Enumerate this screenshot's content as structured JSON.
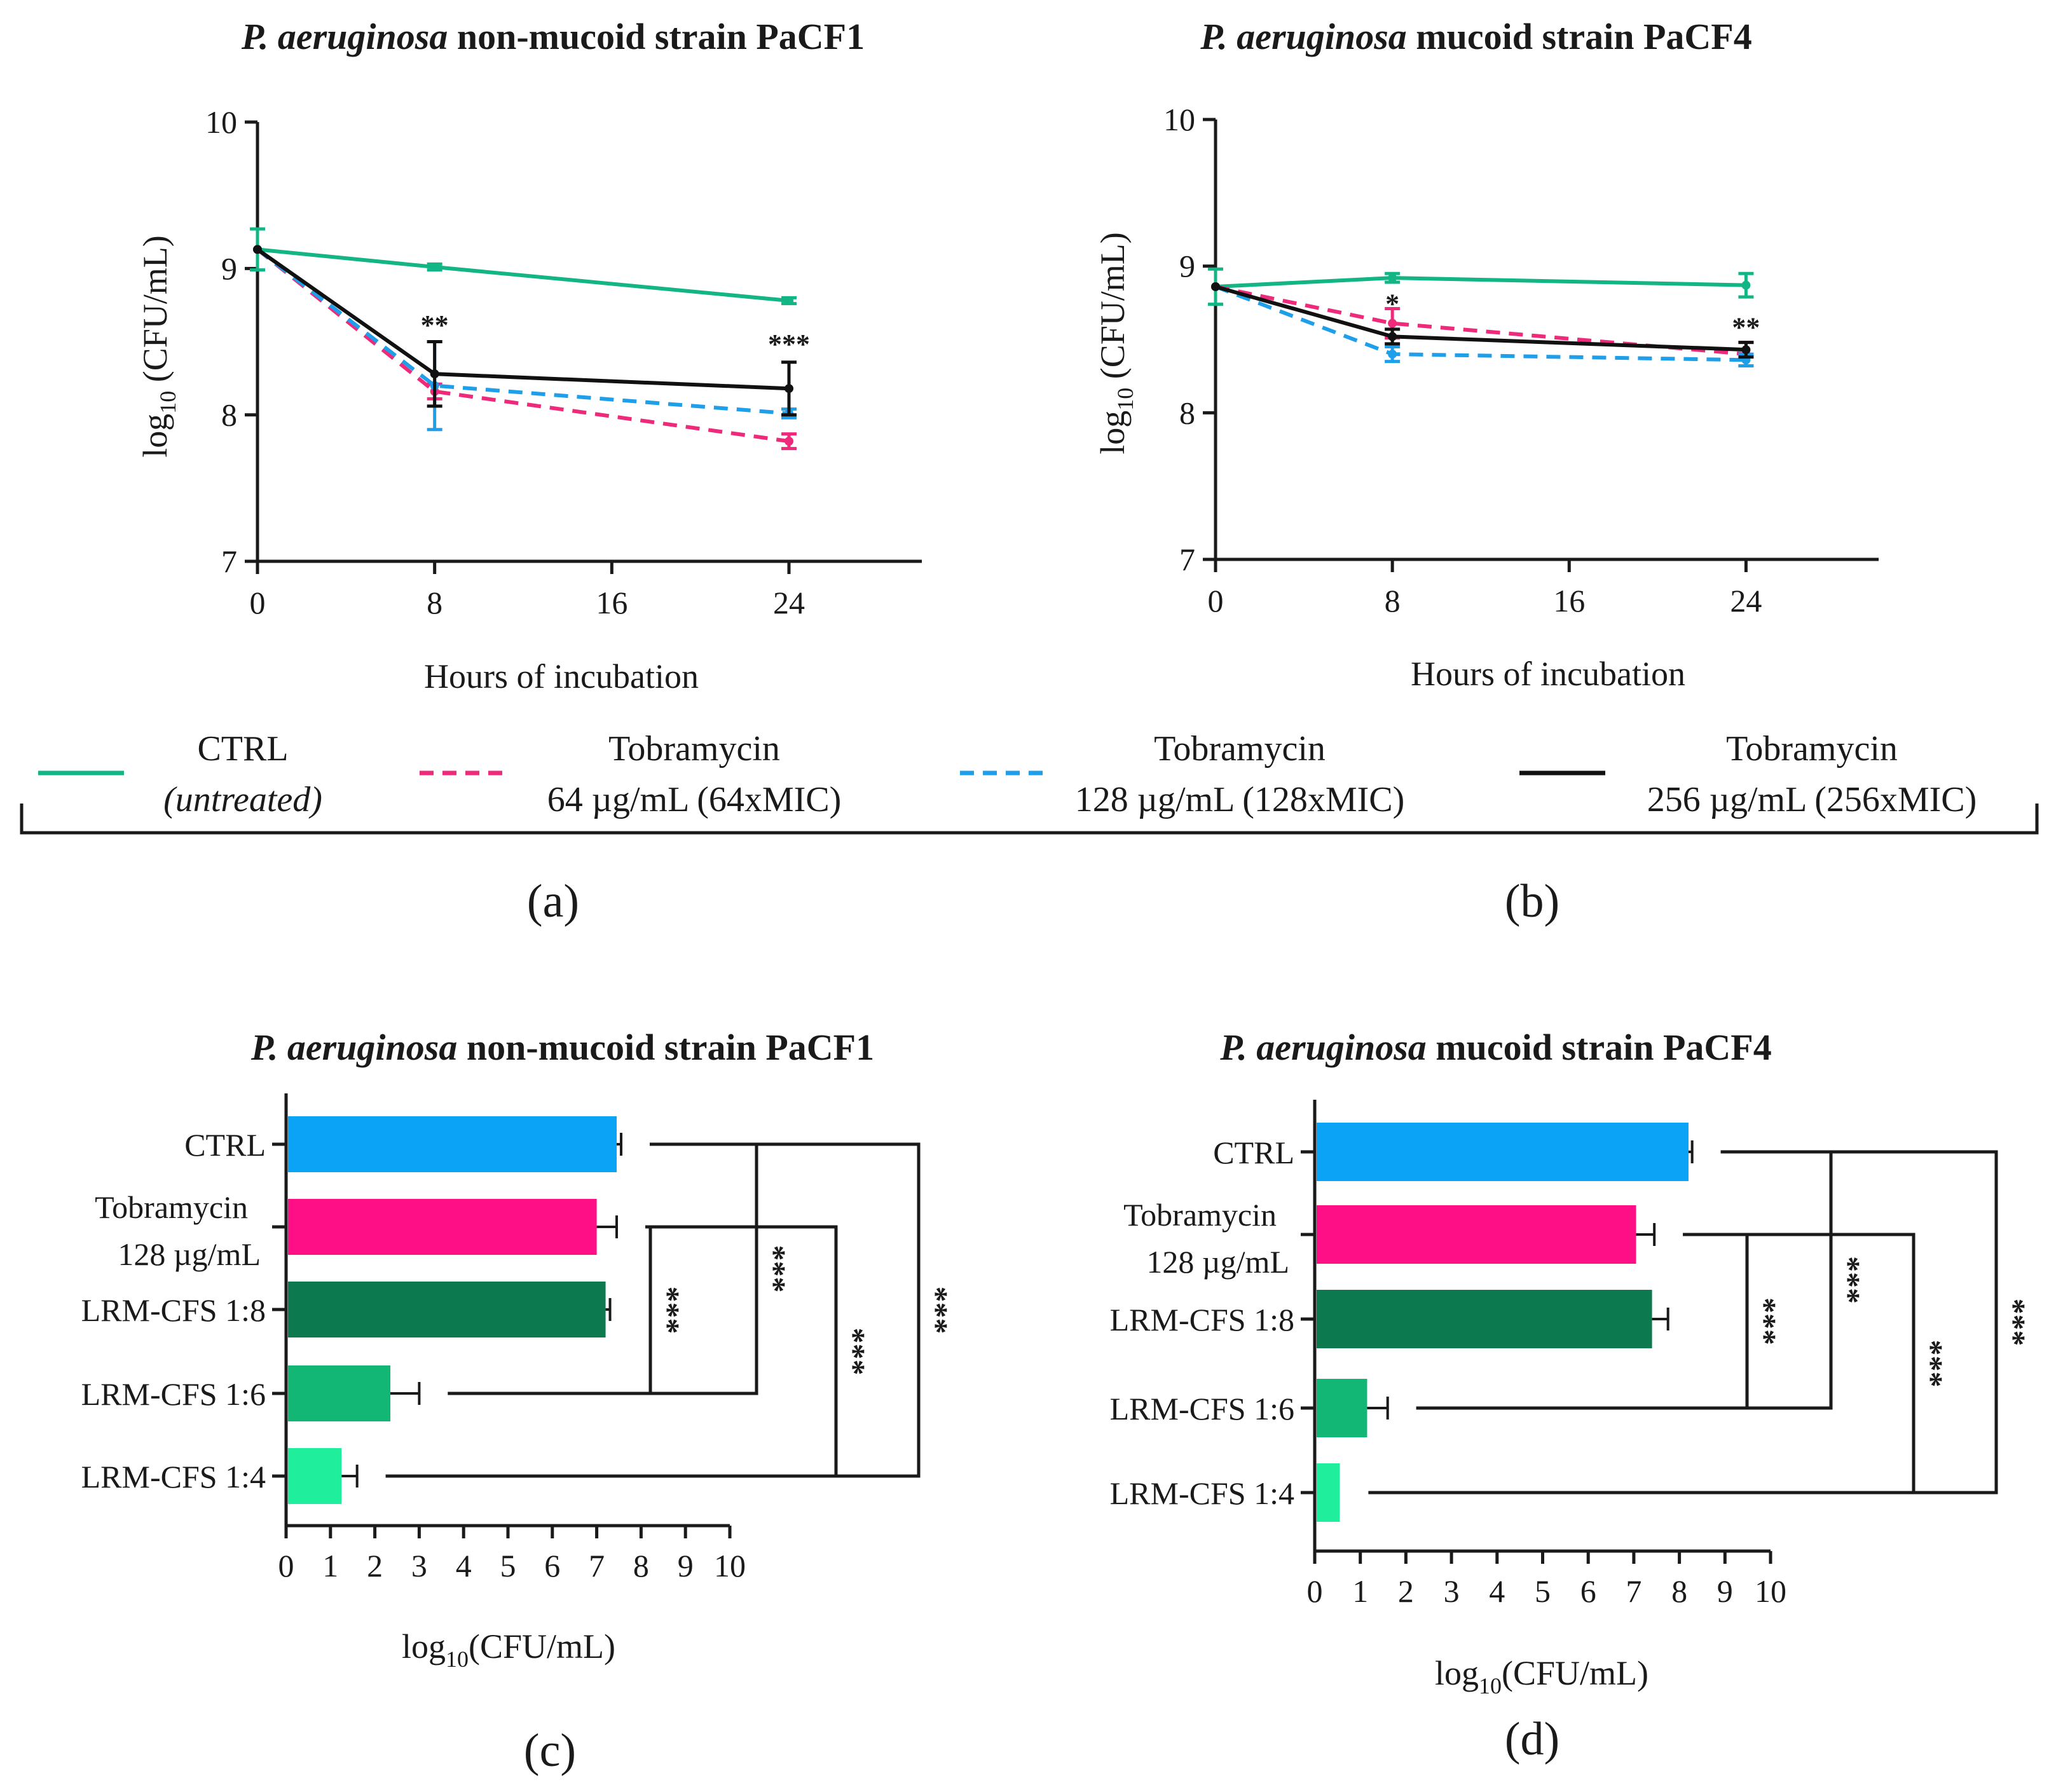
{
  "colors": {
    "ctrl_line": "#13b585",
    "tob64_line": "#ee2a7b",
    "tob128_line": "#1f9fea",
    "tob256_line": "#111111",
    "bar_ctrl": "#0aa3f5",
    "bar_tob": "#ff0f86",
    "bar_18": "#0c7a4e",
    "bar_16": "#12b775",
    "bar_14": "#1fef9c"
  },
  "legend": {
    "items": [
      {
        "line1": "CTRL",
        "line2": "(untreated)",
        "line2_italic": true,
        "color_key": "ctrl_line",
        "dashed": false
      },
      {
        "line1": "Tobramycin",
        "line2": "64 µg/mL (64xMIC)",
        "line2_italic": false,
        "color_key": "tob64_line",
        "dashed": true
      },
      {
        "line1": "Tobramycin",
        "line2": "128 µg/mL (128xMIC)",
        "line2_italic": false,
        "color_key": "tob128_line",
        "dashed": true
      },
      {
        "line1": "Tobramycin",
        "line2": "256 µg/mL (256xMIC)",
        "line2_italic": false,
        "color_key": "tob256_line",
        "dashed": false
      }
    ]
  },
  "chart_data": [
    {
      "id": "a",
      "type": "line",
      "panel_label": "(a)",
      "title_italic": "P. aeruginosa",
      "title_rest": " non-mucoid strain PaCF1",
      "xlabel": "Hours of incubation",
      "ylabel_main": "log",
      "ylabel_sub": "10",
      "ylabel_rest": " (CFU/mL)",
      "x_ticks": [
        0,
        8,
        16,
        24
      ],
      "y_ticks": [
        7,
        8,
        9,
        10
      ],
      "xlim": [
        0,
        30
      ],
      "ylim": [
        7,
        10
      ],
      "series": [
        {
          "name": "CTRL",
          "color_key": "ctrl_line",
          "dashed": false,
          "x": [
            0,
            8,
            24
          ],
          "y": [
            9.13,
            9.01,
            8.78
          ],
          "err": [
            0.14,
            0.02,
            0.02
          ]
        },
        {
          "name": "Tobramycin 64 µg/mL",
          "color_key": "tob64_line",
          "dashed": true,
          "x": [
            0,
            8,
            24
          ],
          "y": [
            9.13,
            8.16,
            7.82
          ],
          "err": [
            0.0,
            0.05,
            0.05
          ]
        },
        {
          "name": "Tobramycin 128 µg/mL",
          "color_key": "tob128_line",
          "dashed": true,
          "x": [
            0,
            8,
            24
          ],
          "y": [
            9.13,
            8.2,
            8.01
          ],
          "err": [
            0.0,
            0.3,
            0.03
          ]
        },
        {
          "name": "Tobramycin 256 µg/mL",
          "color_key": "tob256_line",
          "dashed": false,
          "x": [
            0,
            8,
            24
          ],
          "y": [
            9.13,
            8.28,
            8.18
          ],
          "err": [
            0.0,
            0.22,
            0.18
          ]
        }
      ],
      "annotations": [
        {
          "x": 8,
          "y": 8.55,
          "text": "**"
        },
        {
          "x": 24,
          "y": 8.42,
          "text": "***"
        }
      ]
    },
    {
      "id": "b",
      "type": "line",
      "panel_label": "(b)",
      "title_italic": "P. aeruginosa",
      "title_rest": " mucoid strain PaCF4",
      "xlabel": "Hours of incubation",
      "ylabel_main": "log",
      "ylabel_sub": "10",
      "ylabel_rest": " (CFU/mL)",
      "x_ticks": [
        0,
        8,
        16,
        24
      ],
      "y_ticks": [
        7,
        8,
        9,
        10
      ],
      "xlim": [
        0,
        30
      ],
      "ylim": [
        7,
        10
      ],
      "series": [
        {
          "name": "CTRL",
          "color_key": "ctrl_line",
          "dashed": false,
          "x": [
            0,
            8,
            24
          ],
          "y": [
            8.86,
            8.92,
            8.87
          ],
          "err": [
            0.12,
            0.03,
            0.08
          ]
        },
        {
          "name": "Tobramycin 64 µg/mL",
          "color_key": "tob64_line",
          "dashed": true,
          "x": [
            0,
            8,
            24
          ],
          "y": [
            8.86,
            8.61,
            8.4
          ],
          "err": [
            0.0,
            0.1,
            0.08
          ]
        },
        {
          "name": "Tobramycin 128 µg/mL",
          "color_key": "tob128_line",
          "dashed": true,
          "x": [
            0,
            8,
            24
          ],
          "y": [
            8.86,
            8.4,
            8.36
          ],
          "err": [
            0.0,
            0.05,
            0.04
          ]
        },
        {
          "name": "Tobramycin 256 µg/mL",
          "color_key": "tob256_line",
          "dashed": false,
          "x": [
            0,
            8,
            24
          ],
          "y": [
            8.86,
            8.52,
            8.43
          ],
          "err": [
            0.0,
            0.05,
            0.05
          ]
        }
      ],
      "annotations": [
        {
          "x": 8,
          "y": 8.68,
          "text": "*"
        },
        {
          "x": 24,
          "y": 8.52,
          "text": "**"
        }
      ]
    },
    {
      "id": "c",
      "type": "bar",
      "orientation": "horizontal",
      "panel_label": "(c)",
      "title_italic": "P. aeruginosa",
      "title_rest": " non-mucoid strain PaCF1",
      "xlabel_main": "log",
      "xlabel_sub": "10",
      "xlabel_rest": "(CFU/mL)",
      "x_ticks": [
        0,
        1,
        2,
        3,
        4,
        5,
        6,
        7,
        8,
        9,
        10
      ],
      "xlim": [
        0,
        10
      ],
      "categories": [
        {
          "line1": "CTRL",
          "line2": ""
        },
        {
          "line1": "Tobramycin",
          "line2": "128 µg/mL"
        },
        {
          "line1": "LRM-CFS 1:8",
          "line2": ""
        },
        {
          "line1": "LRM-CFS 1:6",
          "line2": ""
        },
        {
          "line1": "LRM-CFS 1:4",
          "line2": ""
        }
      ],
      "values": [
        7.45,
        7.0,
        7.2,
        2.35,
        1.25
      ],
      "errors": [
        0.1,
        0.45,
        0.1,
        0.65,
        0.35
      ],
      "bar_color_keys": [
        "bar_ctrl",
        "bar_tob",
        "bar_18",
        "bar_16",
        "bar_14"
      ],
      "brackets": [
        {
          "from": 1,
          "to": 3,
          "text": "***"
        },
        {
          "from": 0,
          "to": 3,
          "text": "***"
        },
        {
          "from": 1,
          "to": 4,
          "text": "***"
        },
        {
          "from": 0,
          "to": 4,
          "text": "***"
        }
      ]
    },
    {
      "id": "d",
      "type": "bar",
      "orientation": "horizontal",
      "panel_label": "(d)",
      "title_italic": "P. aeruginosa",
      "title_rest": " mucoid strain PaCF4",
      "xlabel_main": "log",
      "xlabel_sub": "10",
      "xlabel_rest": "(CFU/mL)",
      "x_ticks": [
        0,
        1,
        2,
        3,
        4,
        5,
        6,
        7,
        8,
        9,
        10
      ],
      "xlim": [
        0,
        10
      ],
      "categories": [
        {
          "line1": "CTRL",
          "line2": ""
        },
        {
          "line1": "Tobramycin",
          "line2": "128 µg/mL"
        },
        {
          "line1": "LRM-CFS 1:8",
          "line2": ""
        },
        {
          "line1": "LRM-CFS 1:6",
          "line2": ""
        },
        {
          "line1": "LRM-CFS 1:4",
          "line2": ""
        }
      ],
      "values": [
        8.2,
        7.05,
        7.4,
        1.15,
        0.55
      ],
      "errors": [
        0.08,
        0.4,
        0.35,
        0.45,
        0.0
      ],
      "bar_color_keys": [
        "bar_ctrl",
        "bar_tob",
        "bar_18",
        "bar_16",
        "bar_14"
      ],
      "brackets": [
        {
          "from": 1,
          "to": 3,
          "text": "***"
        },
        {
          "from": 0,
          "to": 3,
          "text": "***"
        },
        {
          "from": 1,
          "to": 4,
          "text": "***"
        },
        {
          "from": 0,
          "to": 4,
          "text": "***"
        }
      ]
    }
  ]
}
